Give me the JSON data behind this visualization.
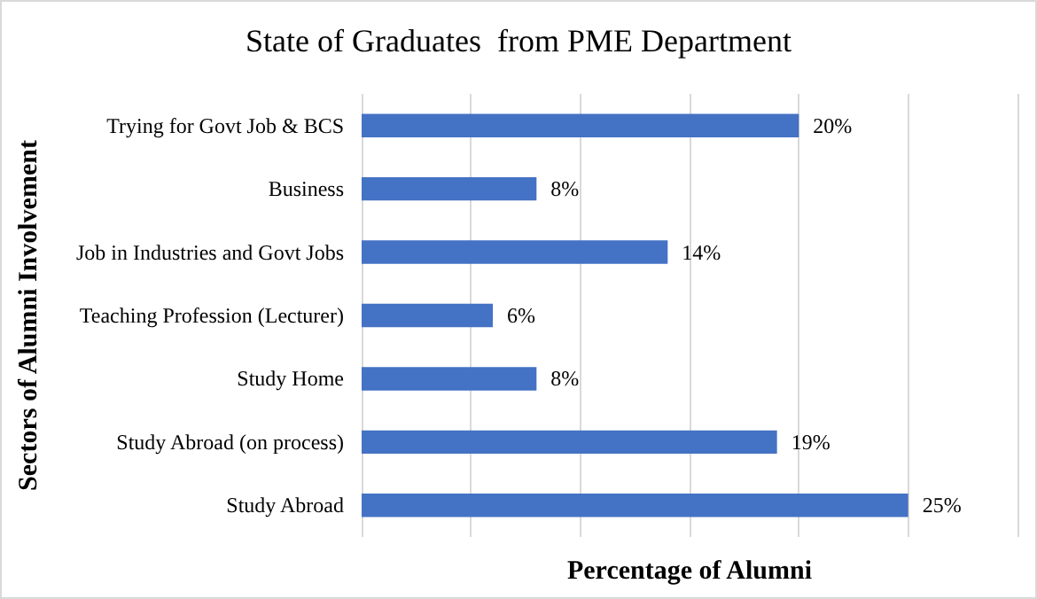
{
  "chart_data": {
    "type": "bar",
    "orientation": "horizontal",
    "title": "State of Graduates  from PME Department",
    "xlabel": "Percentage of Alumni",
    "ylabel": "Sectors of Alumni Involvement",
    "categories": [
      "Trying for Govt Job & BCS",
      "Business",
      "Job in Industries and Govt Jobs",
      "Teaching Profession (Lecturer)",
      "Study Home",
      "Study Abroad (on process)",
      "Study Abroad"
    ],
    "values": [
      20,
      8,
      14,
      6,
      8,
      19,
      25
    ],
    "value_labels": [
      "20%",
      "8%",
      "14%",
      "6%",
      "8%",
      "19%",
      "25%"
    ],
    "color": "#4472c4",
    "xlim": [
      0,
      30
    ],
    "xticks": [
      {
        "value": 0,
        "label": null
      },
      {
        "value": 5,
        "label": null
      },
      {
        "value": 10,
        "label": null
      },
      {
        "value": 15,
        "label": null
      },
      {
        "value": 20,
        "label": null
      },
      {
        "value": 25,
        "label": null
      },
      {
        "value": 30,
        "label": null
      }
    ],
    "grid": "x",
    "tick_labels": "y"
  }
}
